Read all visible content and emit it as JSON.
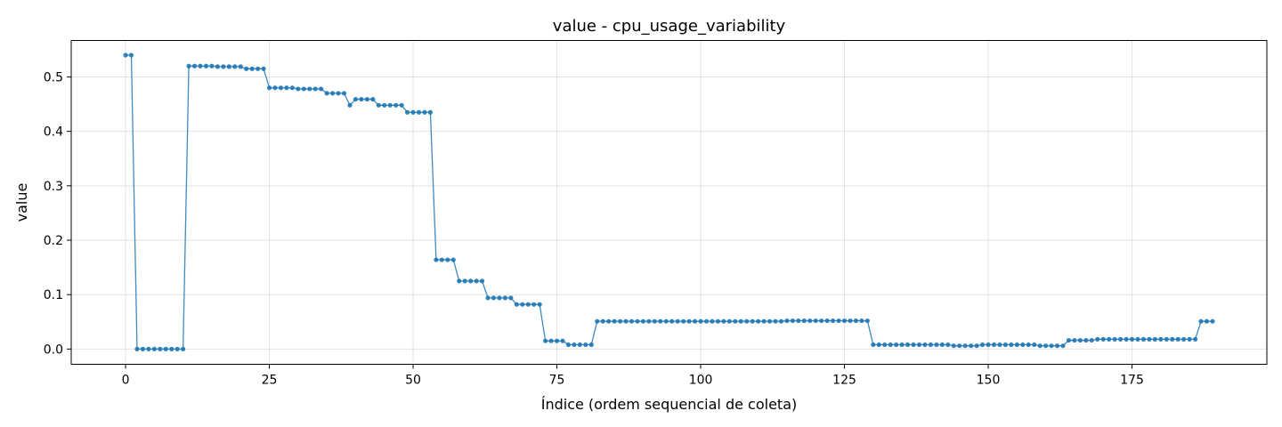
{
  "chart_data": {
    "type": "line",
    "title": "value - cpu_usage_variability",
    "xlabel": "Índice (ordem sequencial de coleta)",
    "ylabel": "value",
    "xlim": [
      -9.45,
      198.45
    ],
    "ylim": [
      -0.028,
      0.567
    ],
    "xticks": [
      0,
      25,
      50,
      75,
      100,
      125,
      150,
      175
    ],
    "xtick_labels": [
      "0",
      "25",
      "50",
      "75",
      "100",
      "125",
      "150",
      "175"
    ],
    "yticks": [
      0.0,
      0.1,
      0.2,
      0.3,
      0.4,
      0.5
    ],
    "ytick_labels": [
      "0.0",
      "0.1",
      "0.2",
      "0.3",
      "0.4",
      "0.5"
    ],
    "grid": true,
    "legend": "none",
    "line_color": "#1f77b4",
    "markers": true,
    "series": [
      {
        "values": [
          0.54,
          0.54,
          0.0,
          0.0,
          0.0,
          0.0,
          0.0,
          0.0,
          0.0,
          0.0,
          0.0,
          0.52,
          0.52,
          0.52,
          0.52,
          0.52,
          0.519,
          0.519,
          0.519,
          0.519,
          0.519,
          0.515,
          0.515,
          0.515,
          0.515,
          0.48,
          0.48,
          0.48,
          0.48,
          0.48,
          0.478,
          0.478,
          0.478,
          0.478,
          0.478,
          0.47,
          0.47,
          0.47,
          0.47,
          0.448,
          0.459,
          0.459,
          0.459,
          0.459,
          0.448,
          0.448,
          0.448,
          0.448,
          0.448,
          0.435,
          0.435,
          0.435,
          0.435,
          0.435,
          0.164,
          0.164,
          0.164,
          0.164,
          0.125,
          0.125,
          0.125,
          0.125,
          0.125,
          0.094,
          0.094,
          0.094,
          0.094,
          0.094,
          0.082,
          0.082,
          0.082,
          0.082,
          0.082,
          0.015,
          0.015,
          0.015,
          0.015,
          0.008,
          0.008,
          0.008,
          0.008,
          0.008,
          0.051,
          0.051,
          0.051,
          0.051,
          0.051,
          0.051,
          0.051,
          0.051,
          0.051,
          0.051,
          0.051,
          0.051,
          0.051,
          0.051,
          0.051,
          0.051,
          0.051,
          0.051,
          0.051,
          0.051,
          0.051,
          0.051,
          0.051,
          0.051,
          0.051,
          0.051,
          0.051,
          0.051,
          0.051,
          0.051,
          0.051,
          0.051,
          0.051,
          0.052,
          0.052,
          0.052,
          0.052,
          0.052,
          0.052,
          0.052,
          0.052,
          0.052,
          0.052,
          0.052,
          0.052,
          0.052,
          0.052,
          0.052,
          0.008,
          0.008,
          0.008,
          0.008,
          0.008,
          0.008,
          0.008,
          0.008,
          0.008,
          0.008,
          0.008,
          0.008,
          0.008,
          0.008,
          0.006,
          0.006,
          0.006,
          0.006,
          0.006,
          0.008,
          0.008,
          0.008,
          0.008,
          0.008,
          0.008,
          0.008,
          0.008,
          0.008,
          0.008,
          0.006,
          0.006,
          0.006,
          0.006,
          0.006,
          0.016,
          0.016,
          0.016,
          0.016,
          0.016,
          0.018,
          0.018,
          0.018,
          0.018,
          0.018,
          0.018,
          0.018,
          0.018,
          0.018,
          0.018,
          0.018,
          0.018,
          0.018,
          0.018,
          0.018,
          0.018,
          0.018,
          0.018,
          0.051,
          0.051,
          0.051
        ]
      }
    ]
  }
}
